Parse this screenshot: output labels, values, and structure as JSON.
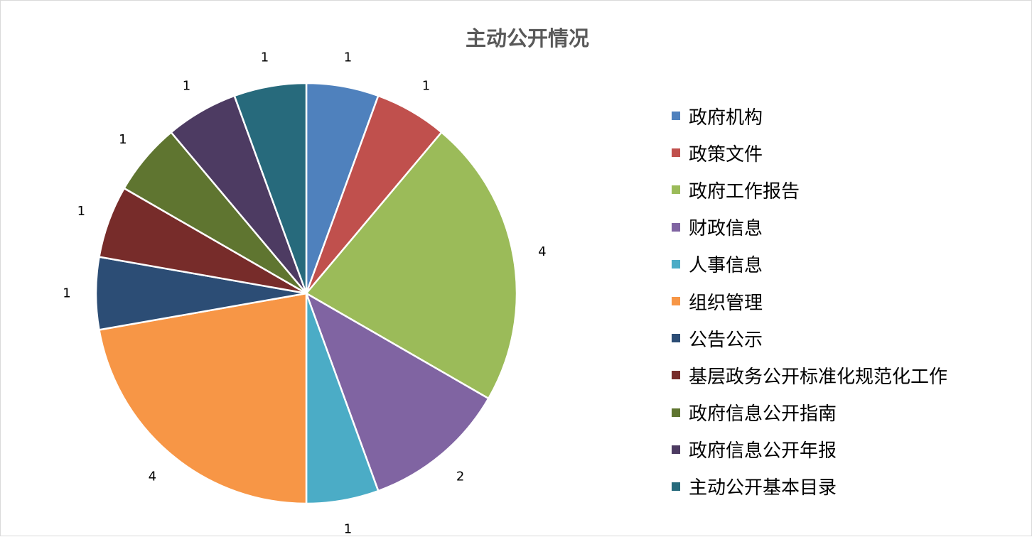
{
  "chart_data": {
    "type": "pie",
    "title": "主动公开情况",
    "legend_position": "right",
    "categories": [
      "政府机构",
      "政策文件",
      "政府工作报告",
      "财政信息",
      "人事信息",
      "组织管理",
      "公告公示",
      "基层政务公开标准化规范化工作",
      "政府信息公开指南",
      "政府信息公开年报",
      "主动公开基本目录"
    ],
    "values": [
      1,
      1,
      4,
      2,
      1,
      4,
      1,
      1,
      1,
      1,
      1
    ],
    "value_labels": [
      "1",
      "1",
      "4",
      "2",
      "1",
      "4",
      "1",
      "1",
      "1",
      "1",
      "1"
    ],
    "colors": [
      "#4F81BD",
      "#C0504D",
      "#9BBB59",
      "#8064A2",
      "#4BACC6",
      "#F79646",
      "#2C4D75",
      "#772C2A",
      "#5F7530",
      "#4D3B62",
      "#276A7C"
    ]
  }
}
